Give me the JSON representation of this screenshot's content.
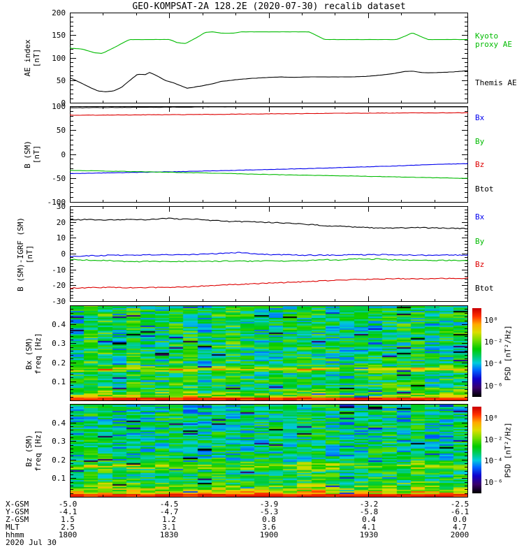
{
  "title": "GEO-KOMPSAT-2A 128.2E (2020-07-30) recalib dataset",
  "colors": {
    "green": "#00bb00",
    "blue": "#0000ee",
    "red": "#dd0000",
    "black": "#000000",
    "background": "#ffffff"
  },
  "chart_data": [
    {
      "type": "line",
      "id": "ae-index",
      "ylabel_lines": [
        "AE index",
        "[nT]"
      ],
      "y_range": [
        0,
        200
      ],
      "y_ticks": [
        0,
        50,
        100,
        150,
        200
      ],
      "y_minor": 10,
      "x_range_hours": [
        18,
        20
      ],
      "jitter": 0.4,
      "legend": [
        {
          "lines": [
            "Kyoto",
            "proxy AE"
          ],
          "color": "green",
          "frac": 0.26
        },
        {
          "lines": [
            "Themis AE"
          ],
          "color": "black",
          "frac": 0.78
        }
      ],
      "series": [
        {
          "name": "Kyoto proxy AE",
          "color": "green",
          "points": [
            [
              18.0,
              122
            ],
            [
              18.06,
              120
            ],
            [
              18.12,
              112
            ],
            [
              18.16,
              110
            ],
            [
              18.2,
              118
            ],
            [
              18.26,
              132
            ],
            [
              18.3,
              141
            ],
            [
              18.5,
              141
            ],
            [
              18.54,
              134
            ],
            [
              18.58,
              132
            ],
            [
              18.64,
              146
            ],
            [
              18.68,
              157
            ],
            [
              18.72,
              158
            ],
            [
              18.76,
              155
            ],
            [
              18.82,
              155
            ],
            [
              18.86,
              158
            ],
            [
              19.2,
              158
            ],
            [
              19.24,
              150
            ],
            [
              19.28,
              141
            ],
            [
              19.64,
              141
            ],
            [
              19.68,
              148
            ],
            [
              19.72,
              156
            ],
            [
              19.76,
              148
            ],
            [
              19.8,
              141
            ],
            [
              20.0,
              141
            ]
          ]
        },
        {
          "name": "Themis AE",
          "color": "black",
          "points": [
            [
              18.0,
              56
            ],
            [
              18.04,
              48
            ],
            [
              18.1,
              35
            ],
            [
              18.14,
              27
            ],
            [
              18.18,
              25
            ],
            [
              18.22,
              27
            ],
            [
              18.26,
              35
            ],
            [
              18.3,
              50
            ],
            [
              18.34,
              64
            ],
            [
              18.38,
              63
            ],
            [
              18.4,
              68
            ],
            [
              18.44,
              60
            ],
            [
              18.48,
              50
            ],
            [
              18.52,
              45
            ],
            [
              18.56,
              38
            ],
            [
              18.59,
              33
            ],
            [
              18.62,
              35
            ],
            [
              18.66,
              38
            ],
            [
              18.72,
              43
            ],
            [
              18.76,
              48
            ],
            [
              18.8,
              50
            ],
            [
              18.86,
              53
            ],
            [
              18.92,
              55
            ],
            [
              19.0,
              57
            ],
            [
              19.06,
              58
            ],
            [
              19.12,
              57
            ],
            [
              19.2,
              58
            ],
            [
              19.3,
              58
            ],
            [
              19.4,
              58
            ],
            [
              19.48,
              59
            ],
            [
              19.56,
              62
            ],
            [
              19.62,
              65
            ],
            [
              19.68,
              70
            ],
            [
              19.72,
              71
            ],
            [
              19.76,
              68
            ],
            [
              19.8,
              67
            ],
            [
              19.86,
              68
            ],
            [
              19.92,
              69
            ],
            [
              20.0,
              72
            ]
          ]
        }
      ]
    },
    {
      "type": "line",
      "id": "b-sm",
      "ylabel_lines": [
        "B (SM)",
        "[nT]"
      ],
      "y_range": [
        -100,
        100
      ],
      "y_ticks": [
        -100,
        -50,
        0,
        50,
        100
      ],
      "y_minor": 10,
      "x_range_hours": [
        18,
        20
      ],
      "jitter": 0.8,
      "legend": [
        {
          "lines": [
            "Bx"
          ],
          "color": "blue",
          "frac": 0.12
        },
        {
          "lines": [
            "By"
          ],
          "color": "green",
          "frac": 0.37
        },
        {
          "lines": [
            "Bz"
          ],
          "color": "red",
          "frac": 0.61
        },
        {
          "lines": [
            "Btot"
          ],
          "color": "black",
          "frac": 0.86
        }
      ],
      "series": [
        {
          "name": "Btot",
          "color": "black",
          "points": [
            [
              18,
              97.5
            ],
            [
              18.4,
              98.5
            ],
            [
              18.8,
              99.5
            ],
            [
              19,
              100.2
            ],
            [
              19.2,
              100.8
            ],
            [
              19.6,
              101.8
            ],
            [
              20,
              102.5
            ]
          ]
        },
        {
          "name": "Bz",
          "color": "red",
          "points": [
            [
              18,
              82
            ],
            [
              18.2,
              82.3
            ],
            [
              18.4,
              82.8
            ],
            [
              18.6,
              83.2
            ],
            [
              18.8,
              84
            ],
            [
              19,
              84.8
            ],
            [
              19.2,
              85.4
            ],
            [
              19.4,
              86
            ],
            [
              19.6,
              86.5
            ],
            [
              19.8,
              86.8
            ],
            [
              20,
              87
            ]
          ]
        },
        {
          "name": "Bx",
          "color": "blue",
          "points": [
            [
              18,
              -40
            ],
            [
              18.2,
              -38.5
            ],
            [
              18.4,
              -37
            ],
            [
              18.6,
              -35.5
            ],
            [
              18.8,
              -33.5
            ],
            [
              19,
              -31.5
            ],
            [
              19.2,
              -29.5
            ],
            [
              19.4,
              -27
            ],
            [
              19.6,
              -24.5
            ],
            [
              19.8,
              -21.5
            ],
            [
              20,
              -19
            ]
          ]
        },
        {
          "name": "By",
          "color": "green",
          "points": [
            [
              18,
              -33.5
            ],
            [
              18.2,
              -35
            ],
            [
              18.4,
              -36.5
            ],
            [
              18.6,
              -38
            ],
            [
              18.8,
              -40
            ],
            [
              19,
              -42
            ],
            [
              19.2,
              -43.5
            ],
            [
              19.4,
              -45
            ],
            [
              19.6,
              -46.5
            ],
            [
              19.8,
              -48.5
            ],
            [
              20,
              -50
            ]
          ]
        }
      ]
    },
    {
      "type": "line",
      "id": "b-sm-igrf",
      "ylabel_lines": [
        "B (SM)-IGRF (SM)",
        "[nT]"
      ],
      "y_range": [
        -30,
        30
      ],
      "y_ticks": [
        -30,
        -20,
        -10,
        0,
        10,
        20,
        30
      ],
      "y_minor": 2,
      "x_range_hours": [
        18,
        20
      ],
      "jitter": 0.6,
      "legend": [
        {
          "lines": [
            "Bx"
          ],
          "color": "blue",
          "frac": 0.12
        },
        {
          "lines": [
            "By"
          ],
          "color": "green",
          "frac": 0.37
        },
        {
          "lines": [
            "Bz"
          ],
          "color": "red",
          "frac": 0.61
        },
        {
          "lines": [
            "Btot"
          ],
          "color": "black",
          "frac": 0.86
        }
      ],
      "series": [
        {
          "name": "Btot",
          "color": "black",
          "points": [
            [
              18,
              21.5
            ],
            [
              18.1,
              21.8
            ],
            [
              18.2,
              21.5
            ],
            [
              18.3,
              21.8
            ],
            [
              18.4,
              21.6
            ],
            [
              18.45,
              22.3
            ],
            [
              18.5,
              22.4
            ],
            [
              18.55,
              22
            ],
            [
              18.6,
              22.2
            ],
            [
              18.65,
              21.8
            ],
            [
              18.7,
              21.2
            ],
            [
              18.8,
              20.6
            ],
            [
              18.9,
              20.3
            ],
            [
              19,
              20
            ],
            [
              19.1,
              19.4
            ],
            [
              19.2,
              18.6
            ],
            [
              19.3,
              17.8
            ],
            [
              19.4,
              17.2
            ],
            [
              19.5,
              16.6
            ],
            [
              19.6,
              16.3
            ],
            [
              19.7,
              16.5
            ],
            [
              19.75,
              16.8
            ],
            [
              19.8,
              16.5
            ],
            [
              19.9,
              16.3
            ],
            [
              20,
              16
            ]
          ]
        },
        {
          "name": "Bx",
          "color": "blue",
          "points": [
            [
              18,
              -1.5
            ],
            [
              18.2,
              -0.8
            ],
            [
              18.4,
              -0.6
            ],
            [
              18.6,
              -0.4
            ],
            [
              18.7,
              0
            ],
            [
              18.8,
              0.6
            ],
            [
              18.85,
              1
            ],
            [
              18.9,
              0.4
            ],
            [
              19,
              -0.4
            ],
            [
              19.2,
              -0.8
            ],
            [
              19.4,
              -0.6
            ],
            [
              19.6,
              -0.4
            ],
            [
              19.7,
              -0.6
            ],
            [
              19.8,
              -0.8
            ],
            [
              20,
              -0.6
            ]
          ]
        },
        {
          "name": "By",
          "color": "green",
          "points": [
            [
              18,
              -3.6
            ],
            [
              18.2,
              -4.2
            ],
            [
              18.3,
              -4.9
            ],
            [
              18.4,
              -4.6
            ],
            [
              18.5,
              -4.9
            ],
            [
              18.6,
              -4.5
            ],
            [
              18.7,
              -4.7
            ],
            [
              18.8,
              -4.4
            ],
            [
              18.9,
              -4.6
            ],
            [
              19,
              -4.3
            ],
            [
              19.1,
              -4.5
            ],
            [
              19.2,
              -4.1
            ],
            [
              19.3,
              -3.6
            ],
            [
              19.35,
              -3.9
            ],
            [
              19.4,
              -3.4
            ],
            [
              19.45,
              -3
            ],
            [
              19.5,
              -3.4
            ],
            [
              19.55,
              -3.1
            ],
            [
              19.6,
              -3.6
            ],
            [
              19.7,
              -3.9
            ],
            [
              19.8,
              -4.1
            ],
            [
              19.9,
              -4
            ],
            [
              20,
              -4.2
            ]
          ]
        },
        {
          "name": "Bz",
          "color": "red",
          "points": [
            [
              18,
              -21.5
            ],
            [
              18.1,
              -21.3
            ],
            [
              18.2,
              -21.1
            ],
            [
              18.3,
              -21.4
            ],
            [
              18.4,
              -21.1
            ],
            [
              18.5,
              -21.2
            ],
            [
              18.55,
              -20.7
            ],
            [
              18.6,
              -20.9
            ],
            [
              18.65,
              -20.3
            ],
            [
              18.7,
              -20
            ],
            [
              18.8,
              -19.4
            ],
            [
              18.9,
              -19
            ],
            [
              19,
              -18.4
            ],
            [
              19.1,
              -17.9
            ],
            [
              19.2,
              -17.3
            ],
            [
              19.3,
              -16.8
            ],
            [
              19.4,
              -16.3
            ],
            [
              19.5,
              -15.9
            ],
            [
              19.6,
              -15.7
            ],
            [
              19.7,
              -15.6
            ],
            [
              19.8,
              -15.6
            ],
            [
              19.9,
              -15.4
            ],
            [
              20,
              -15.2
            ]
          ]
        }
      ]
    },
    {
      "type": "heatmap",
      "id": "bx-spectrogram",
      "ylabel_lines": [
        "Bx (SM)",
        "freq [Hz]"
      ],
      "y_range": [
        0,
        0.5
      ],
      "y_ticks": [
        0.1,
        0.2,
        0.3,
        0.4
      ],
      "y_minor": 0.02,
      "x_range_hours": [
        18,
        20
      ],
      "seed": 101,
      "cols": 28,
      "rows": 66,
      "base_log": -3.1,
      "noise": 1.3,
      "col_jitter": 0.7,
      "low_boost": 3.2,
      "low_scale": 0.032,
      "band_freq": 0.165,
      "band_amp": 2.0,
      "band_width": 0.013,
      "dip_prob": 0.035,
      "psd_log_range": [
        -7,
        1.1
      ]
    },
    {
      "type": "heatmap",
      "id": "bz-spectrogram",
      "ylabel_lines": [
        "Bz (SM)",
        "freq [Hz]"
      ],
      "y_range": [
        0,
        0.5
      ],
      "y_ticks": [
        0.1,
        0.2,
        0.3,
        0.4
      ],
      "y_minor": 0.02,
      "x_range_hours": [
        18,
        20
      ],
      "seed": 202,
      "cols": 28,
      "rows": 66,
      "base_log": -3.3,
      "noise": 1.25,
      "col_jitter": 0.7,
      "low_boost": 3.8,
      "low_scale": 0.05,
      "band_freq": 0.165,
      "band_amp": 1.4,
      "band_width": 0.02,
      "dip_prob": 0.03,
      "psd_log_range": [
        -7,
        1.1
      ]
    }
  ],
  "colorbar": {
    "label": "PSD [nT²/Hz]",
    "ticks": [
      "10⁰",
      "10⁻²",
      "10⁻⁴",
      "10⁻⁶"
    ],
    "tick_fracs_from_top": [
      0.14,
      0.385,
      0.63,
      0.88
    ]
  },
  "bottom_axis": {
    "rows": [
      {
        "label": "X-GSM",
        "values": [
          "-5.0",
          "-4.5",
          "-3.9",
          "-3.2",
          "-2.5"
        ]
      },
      {
        "label": "Y-GSM",
        "values": [
          "-4.1",
          "-4.7",
          "-5.3",
          "-5.8",
          "-6.1"
        ]
      },
      {
        "label": "Z-GSM",
        "values": [
          "1.5",
          "1.2",
          "0.8",
          "0.4",
          "0.0"
        ]
      },
      {
        "label": "MLT",
        "values": [
          "2.5",
          "3.1",
          "3.6",
          "4.1",
          "4.7"
        ]
      },
      {
        "label": "hhmm",
        "values": [
          "1800",
          "1830",
          "1900",
          "1930",
          "2000"
        ]
      }
    ],
    "date": "2020 Jul 30"
  }
}
